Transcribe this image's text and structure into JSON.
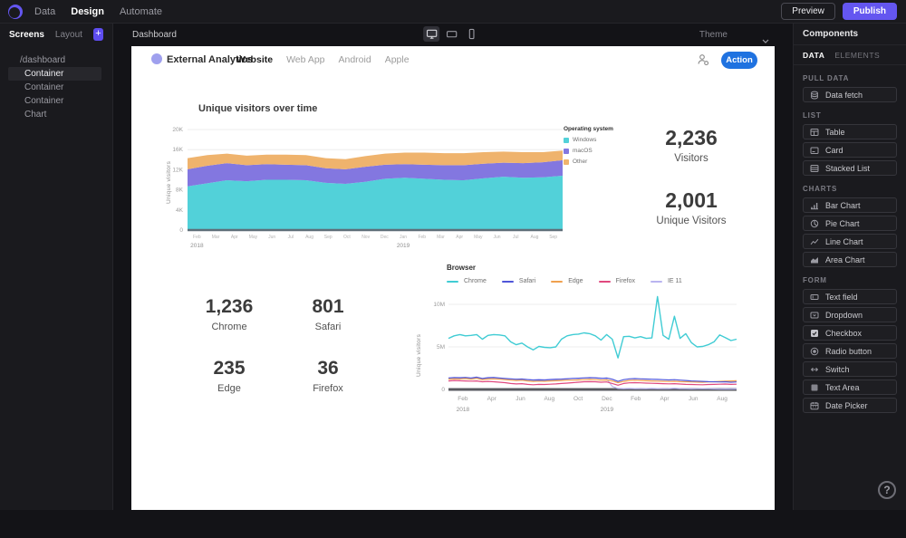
{
  "topbar": {
    "nav": [
      {
        "label": "Data"
      },
      {
        "label": "Design",
        "active": true
      },
      {
        "label": "Automate"
      }
    ],
    "preview_label": "Preview",
    "publish_label": "Publish"
  },
  "left_sidebar": {
    "tabs": [
      {
        "label": "Screens",
        "active": true
      },
      {
        "label": "Layout"
      }
    ],
    "tree": [
      {
        "label": "/dashboard"
      },
      {
        "label": "Container",
        "selected": true
      },
      {
        "label": "Container"
      },
      {
        "label": "Container"
      },
      {
        "label": "Chart"
      }
    ]
  },
  "canvas": {
    "title": "Dashboard",
    "theme_label": "Theme"
  },
  "dashboard": {
    "brand": "External Analytics",
    "tabs": [
      {
        "label": "Website",
        "active": true
      },
      {
        "label": "Web App"
      },
      {
        "label": "Android"
      },
      {
        "label": "Apple"
      }
    ],
    "action_label": "Action",
    "stats_right": [
      {
        "value": "2,236",
        "label": "Visitors"
      },
      {
        "value": "2,001",
        "label": "Unique Visitors"
      }
    ],
    "stats_bottom": [
      {
        "value": "1,236",
        "label": "Chrome"
      },
      {
        "value": "801",
        "label": "Safari"
      },
      {
        "value": "235",
        "label": "Edge"
      },
      {
        "value": "36",
        "label": "Firefox"
      }
    ]
  },
  "chart_data": [
    {
      "type": "area",
      "title": "Unique visitors over time",
      "ylabel": "Unique visitors",
      "legend_title": "Operating system",
      "legend_position": "right",
      "units": "thousands",
      "ylim": [
        0,
        20
      ],
      "y_ticks": [
        {
          "label": "20K",
          "v": 20
        },
        {
          "label": "16K",
          "v": 16
        },
        {
          "label": "12K",
          "v": 12
        },
        {
          "label": "8K",
          "v": 8
        },
        {
          "label": "4K",
          "v": 4
        },
        {
          "label": "0",
          "v": 0
        }
      ],
      "x_ticks": [
        "Feb",
        "Mar",
        "Apr",
        "May",
        "Jun",
        "Jul",
        "Aug",
        "Sep",
        "Oct",
        "Nov",
        "Dec",
        "Jan",
        "Feb",
        "Mar",
        "Apr",
        "May",
        "Jun",
        "Jul",
        "Aug",
        "Sep"
      ],
      "year_labels": [
        {
          "label": "2018",
          "index": 0
        },
        {
          "label": "2019",
          "index": 11
        }
      ],
      "series": [
        {
          "name": "Windows",
          "color": "#52d1d9",
          "values": [
            8.7,
            9.3,
            9.9,
            9.7,
            10,
            10,
            9.9,
            9.4,
            9.2,
            9.6,
            10.2,
            10.4,
            10.2,
            10,
            9.9,
            10.3,
            10.6,
            10.4,
            10.5,
            10.8
          ]
        },
        {
          "name": "macOS",
          "color": "#8377e0",
          "values": [
            3.4,
            3.5,
            3.4,
            3.2,
            3.1,
            3,
            3,
            2.9,
            2.9,
            3,
            2.8,
            2.7,
            2.8,
            2.9,
            3,
            2.9,
            2.8,
            2.9,
            3,
            3.1
          ]
        },
        {
          "name": "Other",
          "color": "#efb36d",
          "values": [
            2.2,
            2.1,
            1.9,
            1.9,
            1.9,
            2,
            2,
            2,
            2,
            2.1,
            2.2,
            2.3,
            2.4,
            2.4,
            2.4,
            2.3,
            2.2,
            2.2,
            2,
            1.9
          ]
        }
      ]
    },
    {
      "type": "line",
      "ylabel": "Unique visitors",
      "legend_title": "Browser",
      "legend_position": "top",
      "units": "millions",
      "ylim": [
        0,
        12
      ],
      "y_ticks": [
        {
          "label": "10M",
          "v": 10
        },
        {
          "label": "5M",
          "v": 5
        },
        {
          "label": "0",
          "v": 0
        }
      ],
      "x_ticks": [
        "Feb",
        "Apr",
        "Jun",
        "Aug",
        "Oct",
        "Dec",
        "Feb",
        "Apr",
        "Jun",
        "Aug"
      ],
      "year_labels": [
        {
          "label": "2018",
          "index": 0
        },
        {
          "label": "2019",
          "index": 5
        }
      ],
      "series": [
        {
          "name": "Chrome",
          "color": "#40ccd4",
          "values": [
            6.0,
            6.3,
            6.45,
            6.3,
            6.35,
            6.45,
            5.9,
            6.35,
            6.45,
            6.4,
            6.3,
            5.6,
            5.25,
            5.45,
            5.0,
            4.65,
            5.05,
            4.95,
            4.9,
            5.0,
            5.9,
            6.3,
            6.45,
            6.5,
            6.65,
            6.55,
            6.3,
            5.8,
            6.45,
            5.9,
            3.7,
            6.2,
            6.25,
            6.05,
            6.2,
            6.0,
            6.05,
            10.9,
            6.35,
            5.9,
            8.6,
            6.0,
            6.55,
            5.5,
            5.0,
            5.05,
            5.25,
            5.6,
            6.4,
            6.1,
            5.75,
            5.9
          ]
        },
        {
          "name": "Safari",
          "color": "#4f55d8",
          "values": [
            1.35,
            1.4,
            1.38,
            1.42,
            1.35,
            1.45,
            1.3,
            1.38,
            1.42,
            1.35,
            1.3,
            1.25,
            1.2,
            1.22,
            1.15,
            1.1,
            1.12,
            1.1,
            1.15,
            1.18,
            1.2,
            1.25,
            1.3,
            1.32,
            1.35,
            1.38,
            1.35,
            1.3,
            1.35,
            1.2,
            0.95,
            1.15,
            1.25,
            1.28,
            1.25,
            1.22,
            1.2,
            1.18,
            1.15,
            1.12,
            1.15,
            1.1,
            1.05,
            1.0,
            0.98,
            0.95,
            0.92,
            0.9,
            0.88,
            0.9,
            0.85,
            0.88
          ]
        },
        {
          "name": "Edge",
          "color": "#f0a14f",
          "values": [
            1.2,
            1.25,
            1.22,
            1.28,
            1.2,
            1.3,
            1.15,
            1.22,
            1.25,
            1.2,
            1.15,
            1.1,
            1.05,
            1.08,
            1.0,
            0.95,
            0.98,
            0.96,
            1.0,
            1.02,
            1.05,
            1.08,
            1.1,
            1.12,
            1.15,
            1.18,
            1.15,
            1.1,
            1.12,
            1.0,
            0.8,
            0.95,
            1.05,
            1.08,
            1.05,
            1.02,
            1.0,
            0.98,
            0.96,
            0.94,
            0.96,
            0.92,
            0.9,
            0.88,
            0.86,
            0.85,
            0.88,
            0.9,
            0.95,
            0.98,
            1.0,
            1.02
          ]
        },
        {
          "name": "Firefox",
          "color": "#e0487e",
          "values": [
            1.0,
            1.05,
            1.02,
            1.0,
            0.98,
            1.0,
            0.9,
            0.95,
            0.9,
            0.85,
            0.8,
            0.7,
            0.65,
            0.68,
            0.6,
            0.55,
            0.6,
            0.58,
            0.62,
            0.65,
            0.7,
            0.75,
            0.8,
            0.85,
            0.9,
            0.92,
            0.9,
            0.85,
            0.88,
            0.7,
            0.5,
            0.7,
            0.78,
            0.8,
            0.78,
            0.75,
            0.72,
            0.7,
            0.68,
            0.66,
            0.68,
            0.64,
            0.6,
            0.58,
            0.56,
            0.55,
            0.58,
            0.6,
            0.62,
            0.64,
            0.6,
            0.62
          ]
        },
        {
          "name": "IE 11",
          "color": "#b9b4f0",
          "values": [
            1.3,
            1.32,
            1.3,
            1.34,
            1.28,
            1.35,
            1.25,
            1.3,
            1.32,
            1.28,
            1.25,
            1.22,
            1.2,
            1.22,
            1.18,
            1.15,
            1.18,
            1.16,
            1.2,
            1.22,
            1.25,
            1.28,
            1.3,
            1.32,
            1.35,
            1.38,
            1.4,
            1.35,
            1.25,
            0.35,
            0.12,
            0.1,
            0.12,
            0.1,
            0.08,
            0.1,
            0.12,
            0.1,
            0.08,
            0.1,
            0.15,
            0.1,
            0.08,
            0.06,
            0.08,
            0.1,
            0.08,
            0.06,
            0.05,
            0.06,
            0.05,
            0.06
          ]
        }
      ]
    }
  ],
  "components": {
    "title": "Components",
    "tabs": [
      {
        "label": "DATA",
        "active": true
      },
      {
        "label": "ELEMENTS"
      }
    ],
    "sections": [
      {
        "label": "PULL DATA",
        "items": [
          {
            "label": "Data fetch",
            "icon": "data-fetch-icon"
          }
        ]
      },
      {
        "label": "LIST",
        "items": [
          {
            "label": "Table",
            "icon": "table-icon"
          },
          {
            "label": "Card",
            "icon": "card-icon"
          },
          {
            "label": "Stacked List",
            "icon": "stacked-list-icon"
          }
        ]
      },
      {
        "label": "CHARTS",
        "items": [
          {
            "label": "Bar Chart",
            "icon": "bar-chart-icon"
          },
          {
            "label": "Pie Chart",
            "icon": "pie-chart-icon"
          },
          {
            "label": "Line Chart",
            "icon": "line-chart-icon"
          },
          {
            "label": "Area Chart",
            "icon": "area-chart-icon"
          }
        ]
      },
      {
        "label": "FORM",
        "items": [
          {
            "label": "Text field",
            "icon": "text-field-icon"
          },
          {
            "label": "Dropdown",
            "icon": "dropdown-icon"
          },
          {
            "label": "Checkbox",
            "icon": "checkbox-icon"
          },
          {
            "label": "Radio button",
            "icon": "radio-button-icon"
          },
          {
            "label": "Switch",
            "icon": "switch-icon"
          },
          {
            "label": "Text Area",
            "icon": "text-area-icon"
          },
          {
            "label": "Date Picker",
            "icon": "date-picker-icon"
          }
        ]
      }
    ],
    "help_label": "?"
  },
  "colors": {
    "accent_purple": "#6456f0",
    "action_blue": "#1f72e0",
    "area_teal": "#52d1d9",
    "area_purple": "#8377e0",
    "area_orange": "#efb36d"
  }
}
